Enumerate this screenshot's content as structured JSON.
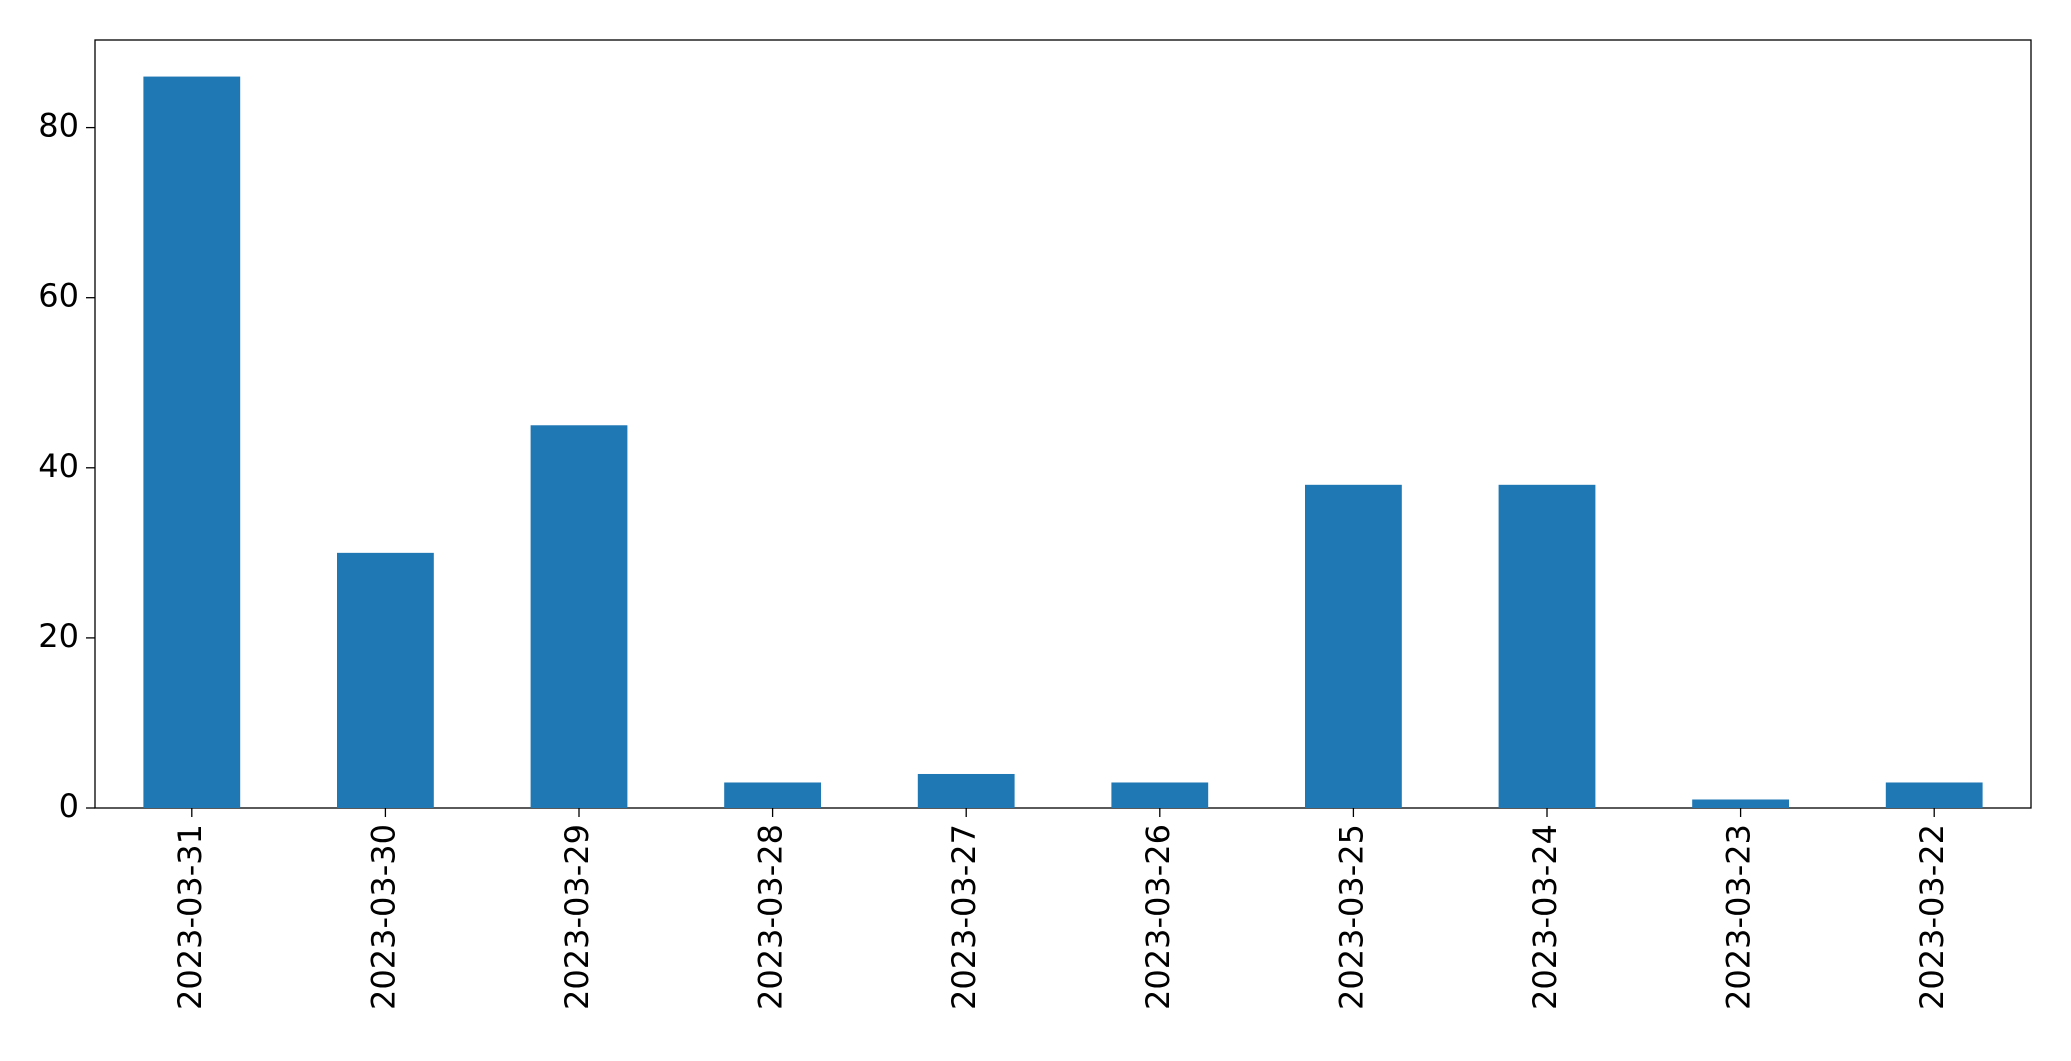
{
  "chart_data": {
    "type": "bar",
    "categories": [
      "2023-03-31",
      "2023-03-30",
      "2023-03-29",
      "2023-03-28",
      "2023-03-27",
      "2023-03-26",
      "2023-03-25",
      "2023-03-24",
      "2023-03-23",
      "2023-03-22"
    ],
    "values": [
      86,
      30,
      45,
      3,
      4,
      3,
      38,
      38,
      1,
      3
    ],
    "color": "#1f77b4",
    "ylim": [
      0,
      90.3
    ],
    "yticks": [
      0,
      20,
      40,
      60,
      80
    ],
    "grid": false
  }
}
